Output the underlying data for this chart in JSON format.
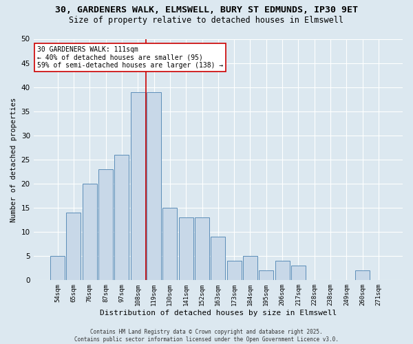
{
  "title_line1": "30, GARDENERS WALK, ELMSWELL, BURY ST EDMUNDS, IP30 9ET",
  "title_line2": "Size of property relative to detached houses in Elmswell",
  "xlabel": "Distribution of detached houses by size in Elmswell",
  "ylabel": "Number of detached properties",
  "categories": [
    "54sqm",
    "65sqm",
    "76sqm",
    "87sqm",
    "97sqm",
    "108sqm",
    "119sqm",
    "130sqm",
    "141sqm",
    "152sqm",
    "163sqm",
    "173sqm",
    "184sqm",
    "195sqm",
    "206sqm",
    "217sqm",
    "228sqm",
    "238sqm",
    "249sqm",
    "260sqm",
    "271sqm"
  ],
  "values": [
    5,
    14,
    20,
    23,
    26,
    39,
    39,
    15,
    13,
    13,
    9,
    4,
    5,
    2,
    4,
    3,
    0,
    0,
    0,
    2,
    0
  ],
  "bar_color": "#c8d8e8",
  "bar_edge_color": "#5b8db8",
  "background_color": "#dce8f0",
  "grid_color": "#ffffff",
  "ref_line_x": 5.5,
  "ref_line_color": "#cc0000",
  "annotation_line1": "30 GARDENERS WALK: 111sqm",
  "annotation_line2": "← 40% of detached houses are smaller (95)",
  "annotation_line3": "59% of semi-detached houses are larger (138) →",
  "annotation_box_color": "#cc0000",
  "annotation_fontsize": 7,
  "title_fontsize": 9.5,
  "subtitle_fontsize": 8.5,
  "xlabel_fontsize": 8,
  "ylabel_fontsize": 7.5,
  "ytick_fontsize": 7.5,
  "xtick_fontsize": 6.5,
  "ylim": [
    0,
    50
  ],
  "yticks": [
    0,
    5,
    10,
    15,
    20,
    25,
    30,
    35,
    40,
    45,
    50
  ],
  "footer_text": "Contains HM Land Registry data © Crown copyright and database right 2025.\nContains public sector information licensed under the Open Government Licence v3.0.",
  "footer_fontsize": 5.5
}
